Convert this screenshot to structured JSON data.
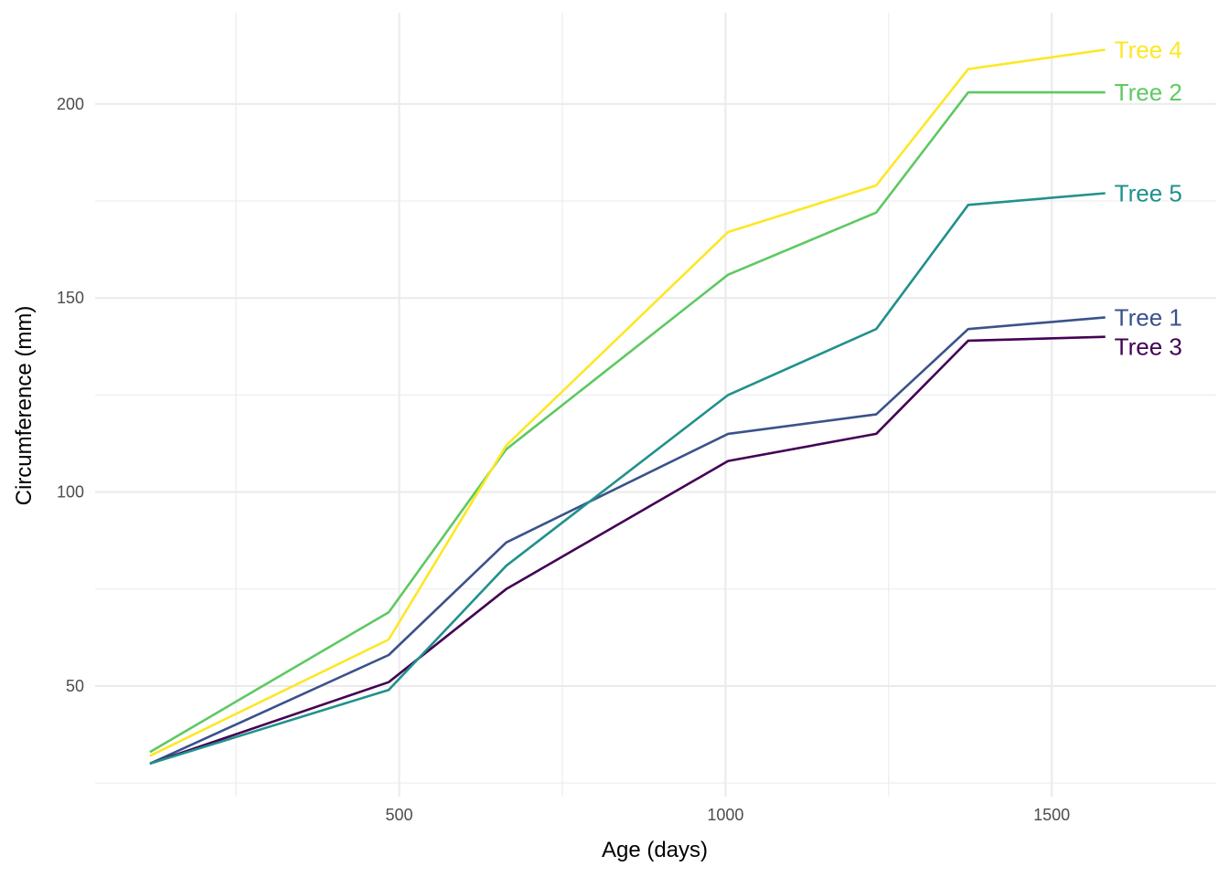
{
  "chart_data": {
    "type": "line",
    "title": "",
    "xlabel": "Age (days)",
    "ylabel": "Circumference (mm)",
    "xlim": [
      34,
      1752
    ],
    "ylim": [
      21.5,
      223.5
    ],
    "x_ticks": [
      500,
      1000,
      1500
    ],
    "x_minor_ticks": [
      250,
      750,
      1250
    ],
    "y_ticks": [
      50,
      100,
      150,
      200
    ],
    "y_minor_ticks": [
      25,
      75,
      125,
      175
    ],
    "grid": true,
    "legend": "none (labels at line ends)",
    "x": [
      118,
      484,
      664,
      1004,
      1231,
      1372,
      1582
    ],
    "series": [
      {
        "name": "Tree 1",
        "color": "#3b528b",
        "values": [
          30,
          58,
          87,
          115,
          120,
          142,
          145
        ]
      },
      {
        "name": "Tree 2",
        "color": "#5ec962",
        "values": [
          33,
          69,
          111,
          156,
          172,
          203,
          203
        ]
      },
      {
        "name": "Tree 3",
        "color": "#440154",
        "values": [
          30,
          51,
          75,
          108,
          115,
          139,
          140
        ]
      },
      {
        "name": "Tree 4",
        "color": "#fde725",
        "values": [
          32,
          62,
          112,
          167,
          179,
          209,
          214
        ]
      },
      {
        "name": "Tree 5",
        "color": "#21918c",
        "values": [
          30,
          49,
          81,
          125,
          142,
          174,
          177
        ]
      }
    ]
  }
}
